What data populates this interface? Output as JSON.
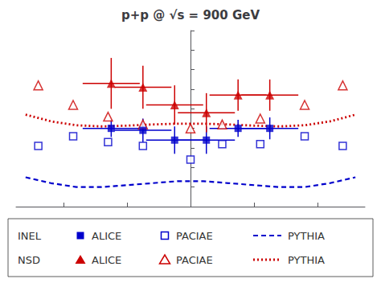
{
  "chart_data": {
    "type": "scatter",
    "title": "p+p @ √s = 900 GeV",
    "xlim": [
      -2.75,
      2.75
    ],
    "ylim": [
      1.5,
      6.0
    ],
    "xticks": [
      -2,
      -1,
      0,
      1,
      2
    ],
    "yticks": [
      1.5,
      2,
      2.5,
      3,
      3.5,
      4,
      4.5,
      5,
      5.5,
      6
    ],
    "tick_labels": false,
    "grid": false,
    "legend": "bottom",
    "series": [
      {
        "name": "ALICE",
        "group": "INEL",
        "type": "scatter",
        "marker": "square",
        "color": "#0000cc",
        "x": [
          -1.25,
          -0.75,
          -0.25,
          0.25,
          0.75,
          1.25
        ],
        "values": [
          3.5,
          3.45,
          3.2,
          3.2,
          3.5,
          3.5
        ],
        "xerr": [
          0.45,
          0.45,
          0.45,
          0.45,
          0.45,
          0.45
        ],
        "yerr": [
          0.22,
          0.3,
          0.35,
          0.35,
          0.22,
          0.28
        ]
      },
      {
        "name": "PACIAE",
        "group": "INEL",
        "type": "scatter",
        "marker": "open_square",
        "color": "#0000cc",
        "x": [
          -2.4,
          -1.85,
          -1.3,
          -0.75,
          0.0,
          0.5,
          1.1,
          1.8,
          2.4
        ],
        "values": [
          3.05,
          3.3,
          3.15,
          3.05,
          2.7,
          3.1,
          3.1,
          3.3,
          3.05
        ]
      },
      {
        "name": "PYTHIA",
        "group": "INEL",
        "type": "line",
        "line_style": "dashed",
        "color": "#0000cc",
        "x": [
          -2.6,
          -2.2,
          -1.8,
          -1.4,
          -1.0,
          -0.6,
          -0.2,
          0.2,
          0.6,
          1.0,
          1.4,
          1.8,
          2.2,
          2.6
        ],
        "values": [
          2.25,
          2.1,
          2.0,
          2.0,
          2.05,
          2.1,
          2.15,
          2.15,
          2.1,
          2.05,
          2.0,
          2.0,
          2.1,
          2.25
        ]
      },
      {
        "name": "ALICE",
        "group": "NSD",
        "type": "scatter",
        "marker": "triangle",
        "color": "#cc0000",
        "x": [
          -1.25,
          -0.75,
          -0.25,
          0.25,
          0.75,
          1.25
        ],
        "values": [
          4.65,
          4.55,
          4.1,
          3.9,
          4.35,
          4.35
        ],
        "xerr": [
          0.45,
          0.45,
          0.45,
          0.45,
          0.45,
          0.45
        ],
        "yerr": [
          0.65,
          0.55,
          0.5,
          0.5,
          0.4,
          0.4
        ]
      },
      {
        "name": "PACIAE",
        "group": "NSD",
        "type": "scatter",
        "marker": "open_triangle",
        "color": "#cc0000",
        "x": [
          -2.4,
          -1.85,
          -1.3,
          -0.75,
          0.0,
          0.5,
          1.1,
          1.8,
          2.4
        ],
        "values": [
          4.6,
          4.1,
          3.8,
          3.6,
          3.5,
          3.6,
          3.75,
          4.1,
          4.6
        ]
      },
      {
        "name": "PYTHIA",
        "group": "NSD",
        "type": "line",
        "line_style": "dotted",
        "color": "#cc0000",
        "x": [
          -2.6,
          -2.2,
          -1.8,
          -1.4,
          -1.0,
          -0.6,
          -0.2,
          0.2,
          0.6,
          1.0,
          1.4,
          1.8,
          2.2,
          2.6
        ],
        "values": [
          3.85,
          3.68,
          3.58,
          3.55,
          3.57,
          3.6,
          3.62,
          3.62,
          3.6,
          3.57,
          3.55,
          3.58,
          3.68,
          3.85
        ]
      }
    ]
  }
}
